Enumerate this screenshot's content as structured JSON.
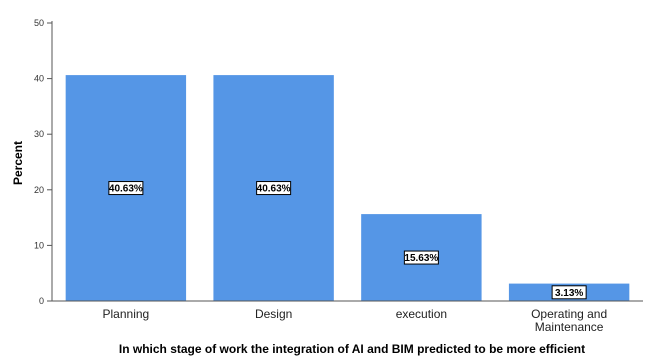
{
  "chart_data": {
    "type": "bar",
    "categories": [
      "Planning",
      "Design",
      "execution",
      "Operating and Maintenance"
    ],
    "category_lines": [
      [
        "Planning"
      ],
      [
        "Design"
      ],
      [
        "execution"
      ],
      [
        "Operating and",
        "Maintenance"
      ]
    ],
    "values": [
      40.63,
      40.63,
      15.63,
      3.13
    ],
    "data_labels": [
      "40.63%",
      "40.63%",
      "15.63%",
      "3.13%"
    ],
    "xlabel": "In which stage of work the integration of AI and BIM predicted to be more efficient",
    "ylabel": "Percent",
    "ylim": [
      0,
      50
    ],
    "yticks": [
      0,
      10,
      20,
      30,
      40,
      50
    ],
    "grid": false,
    "colors": {
      "bar": "#5596e6",
      "axis": "#555555",
      "label_border": "#000000",
      "label_bg": "#ffffff"
    }
  }
}
